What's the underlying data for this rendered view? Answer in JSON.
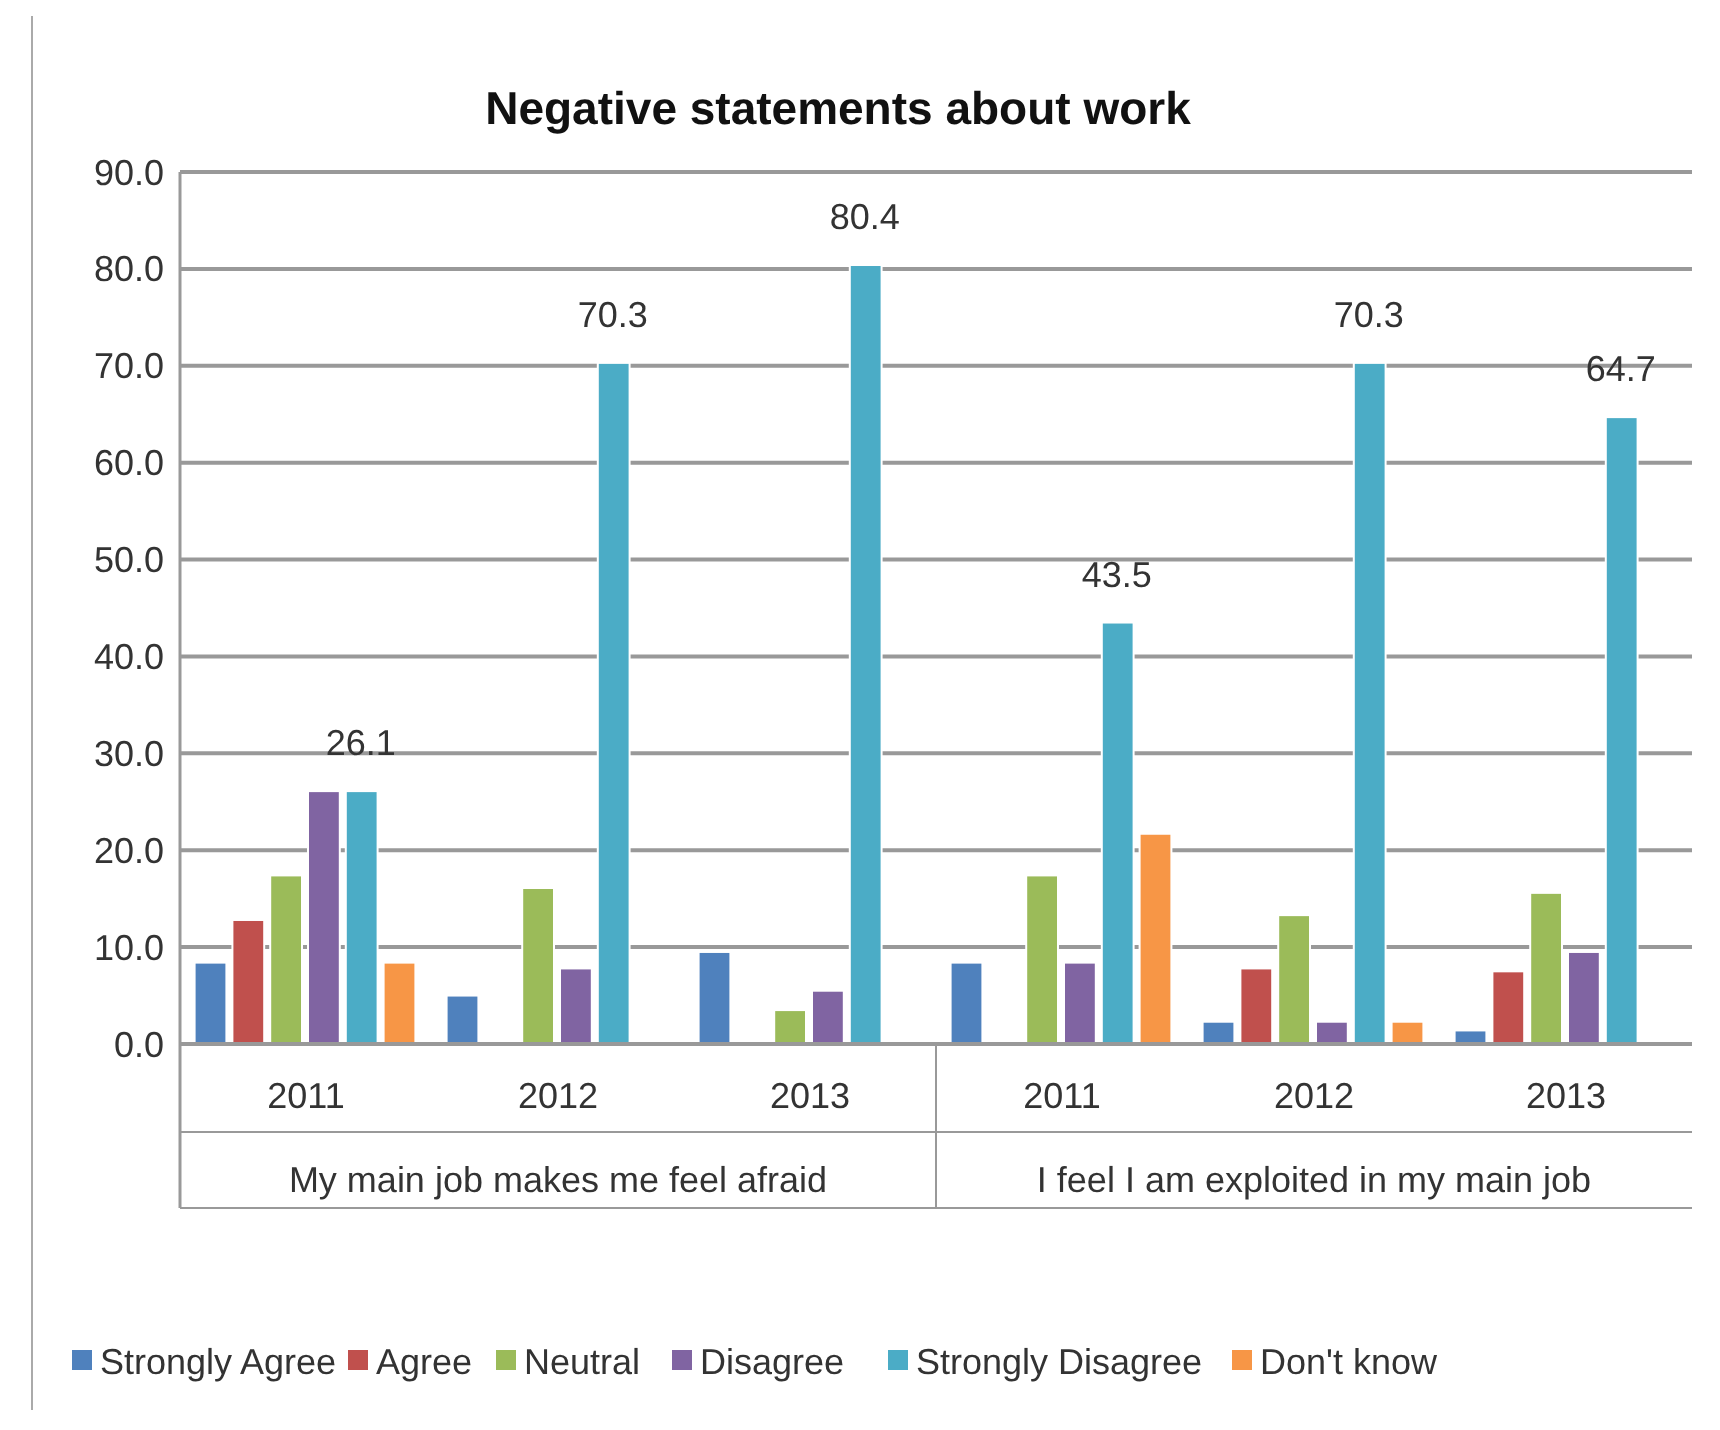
{
  "chart_data": {
    "type": "bar",
    "title": "Negative statements about work",
    "categories": [
      "2011",
      "2012",
      "2013",
      "2011",
      "2012",
      "2013"
    ],
    "annotations": [
      "My main job makes me feel afraid",
      "I feel I am exploited in my main job"
    ],
    "series": [
      {
        "name": "Strongly Agree",
        "color": "#4f81bd",
        "values": [
          8.4,
          5.0,
          9.5,
          8.4,
          2.3,
          1.4
        ]
      },
      {
        "name": "Agree",
        "color": "#c0504d",
        "values": [
          12.8,
          null,
          null,
          null,
          7.8,
          7.5
        ]
      },
      {
        "name": "Neutral",
        "color": "#9bbb59",
        "values": [
          17.4,
          16.1,
          3.5,
          17.4,
          13.3,
          15.6
        ]
      },
      {
        "name": "Disagree",
        "color": "#8064a2",
        "values": [
          26.1,
          7.8,
          5.5,
          8.4,
          2.3,
          9.5
        ]
      },
      {
        "name": "Strongly Disagree",
        "color": "#4bacc6",
        "values": [
          26.1,
          70.3,
          80.4,
          43.5,
          70.3,
          64.7
        ],
        "value_labels": [
          "26.1",
          "70.3",
          "80.4",
          "43.5",
          "70.3",
          "64.7"
        ]
      },
      {
        "name": "Don't know",
        "color": "#f79646",
        "values": [
          8.4,
          null,
          null,
          21.7,
          2.3,
          null
        ]
      }
    ],
    "ylim": [
      0,
      90
    ],
    "yticks": [
      {
        "value": 0,
        "label": "0.0"
      },
      {
        "value": 10,
        "label": "10.0"
      },
      {
        "value": 20,
        "label": "20.0"
      },
      {
        "value": 30,
        "label": "30.0"
      },
      {
        "value": 40,
        "label": "40.0"
      },
      {
        "value": 50,
        "label": "50.0"
      },
      {
        "value": 60,
        "label": "60.0"
      },
      {
        "value": 70,
        "label": "70.0"
      },
      {
        "value": 80,
        "label": "80.0"
      },
      {
        "value": 90,
        "label": "90.0"
      }
    ],
    "grid": "y",
    "legend": "bottom"
  }
}
